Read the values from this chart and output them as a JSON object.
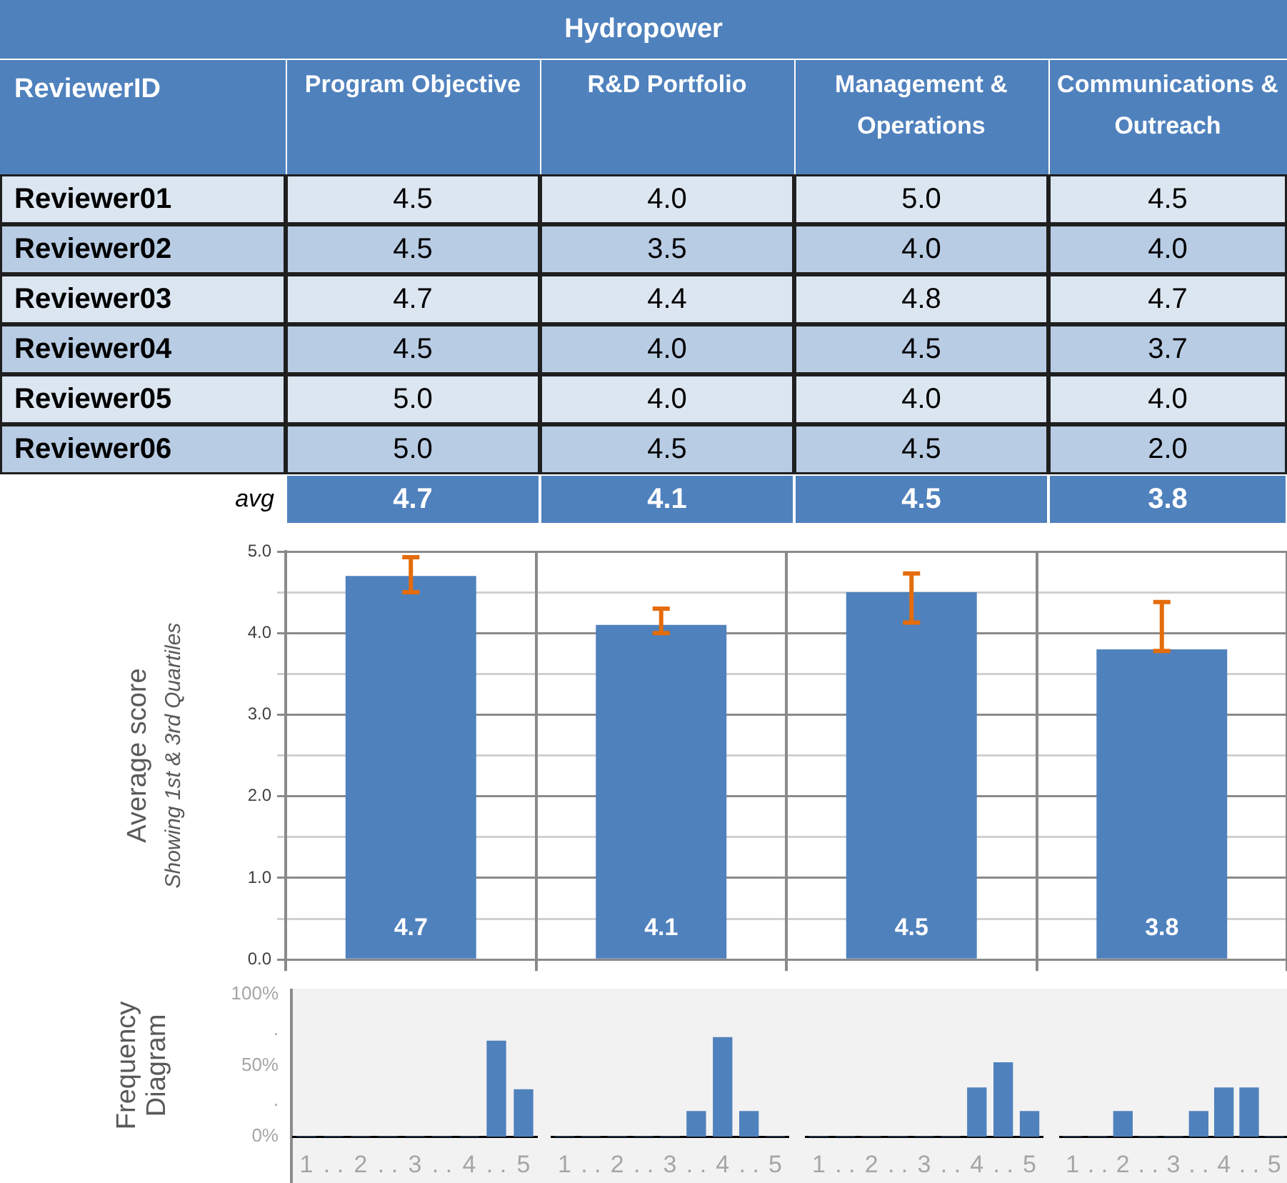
{
  "chart_data": [
    {
      "type": "heatmap",
      "title": "Hydropower",
      "ylabel": "ReviewerID",
      "categories": [
        "Program Objective",
        "R&D Portfolio",
        "Management & Operations",
        "Communications & Outreach"
      ],
      "y_categories": [
        "Reviewer01",
        "Reviewer02",
        "Reviewer03",
        "Reviewer04",
        "Reviewer05",
        "Reviewer06",
        "avg"
      ],
      "cells": [
        [
          4.5,
          4.0,
          5.0,
          4.5
        ],
        [
          4.5,
          3.5,
          4.0,
          4.0
        ],
        [
          4.7,
          4.4,
          4.8,
          4.7
        ],
        [
          4.5,
          4.0,
          4.5,
          3.7
        ],
        [
          5.0,
          4.0,
          4.0,
          4.0
        ],
        [
          5.0,
          4.5,
          4.5,
          2.0
        ],
        [
          4.7,
          4.1,
          4.5,
          3.8
        ]
      ],
      "cell_labels": [
        [
          "4.5",
          "4.0",
          "5.0",
          "4.5"
        ],
        [
          "4.5",
          "3.5",
          "4.0",
          "4.0"
        ],
        [
          "4.7",
          "4.4",
          "4.8",
          "4.7"
        ],
        [
          "4.5",
          "4.0",
          "4.5",
          "3.7"
        ],
        [
          "5.0",
          "4.0",
          "4.0",
          "4.0"
        ],
        [
          "5.0",
          "4.5",
          "4.5",
          "2.0"
        ],
        [
          "4.7",
          "4.1",
          "4.5",
          "3.8"
        ]
      ],
      "data_labels": true
    },
    {
      "type": "bar",
      "ylabel": "Average score",
      "annotations": [
        "Showing 1st & 3rd Quartiles"
      ],
      "categories": [
        null,
        null,
        null,
        null
      ],
      "values": [
        4.7,
        4.1,
        4.5,
        3.8
      ],
      "color": "#4f81bd",
      "errors": [
        [
          4.5,
          4.93
        ],
        [
          4.0,
          4.3
        ],
        [
          4.13,
          4.73
        ],
        [
          3.78,
          4.38
        ]
      ],
      "data_labels": true,
      "grid": true,
      "ylim": [
        0,
        5
      ],
      "yticks": [
        {
          "value": 0,
          "label": "0.0"
        },
        {
          "value": 0.5,
          "label": null
        },
        {
          "value": 1,
          "label": "1.0"
        },
        {
          "value": 1.5,
          "label": null
        },
        {
          "value": 2,
          "label": "2.0"
        },
        {
          "value": 2.5,
          "label": null
        },
        {
          "value": 3,
          "label": "3.0"
        },
        {
          "value": 3.5,
          "label": null
        },
        {
          "value": 4,
          "label": "4.0"
        },
        {
          "value": 4.5,
          "label": null
        },
        {
          "value": 5,
          "label": "5.0"
        }
      ]
    },
    {
      "type": "bar",
      "ylabel": "Frequency Diagram",
      "x": [
        1,
        1.5,
        2,
        2.5,
        3,
        3.5,
        4,
        4.5,
        5
      ],
      "values": [
        0,
        0,
        0,
        0,
        0,
        0,
        0,
        67,
        33
      ],
      "color": "#4f81bd",
      "xlim": [
        0.75,
        5.25
      ],
      "xticks": [
        1,
        {
          "value": 1.5,
          "label": ". ."
        },
        2,
        {
          "value": 2.5,
          "label": ". ."
        },
        3,
        {
          "value": 3.5,
          "label": ". ."
        },
        4,
        {
          "value": 4.5,
          "label": ". ."
        },
        5
      ],
      "ylim": [
        0,
        100
      ],
      "yticks": [
        {
          "value": 0,
          "label": "0%"
        },
        {
          "value": 25,
          "label": "."
        },
        {
          "value": 50,
          "label": "50%"
        },
        {
          "value": 75,
          "label": "."
        },
        {
          "value": 100,
          "label": "100%"
        }
      ]
    },
    {
      "type": "bar",
      "x": [
        1,
        1.5,
        2,
        2.5,
        3,
        3.5,
        4,
        4.5,
        5
      ],
      "values": [
        0,
        0,
        0,
        0,
        0,
        17,
        67,
        17,
        0
      ],
      "color": "#4f81bd",
      "tick_labels": "x",
      "xlim": [
        0.75,
        5.25
      ],
      "xticks": [
        1,
        {
          "value": 1.5,
          "label": ". ."
        },
        2,
        {
          "value": 2.5,
          "label": ". ."
        },
        3,
        {
          "value": 3.5,
          "label": ". ."
        },
        4,
        {
          "value": 4.5,
          "label": ". ."
        },
        5
      ],
      "ylim": [
        0,
        100
      ]
    },
    {
      "type": "bar",
      "x": [
        1,
        1.5,
        2,
        2.5,
        3,
        3.5,
        4,
        4.5,
        5
      ],
      "values": [
        0,
        0,
        0,
        0,
        0,
        0,
        33,
        50,
        17
      ],
      "color": "#4f81bd",
      "tick_labels": "x",
      "xlim": [
        0.75,
        5.25
      ],
      "xticks": [
        1,
        {
          "value": 1.5,
          "label": ". ."
        },
        2,
        {
          "value": 2.5,
          "label": ". ."
        },
        3,
        {
          "value": 3.5,
          "label": ". ."
        },
        4,
        {
          "value": 4.5,
          "label": ". ."
        },
        5
      ],
      "ylim": [
        0,
        100
      ]
    },
    {
      "type": "bar",
      "x": [
        1,
        1.5,
        2,
        2.5,
        3,
        3.5,
        4,
        4.5,
        5
      ],
      "values": [
        0,
        0,
        17,
        0,
        0,
        17,
        33,
        33,
        0
      ],
      "color": "#4f81bd",
      "tick_labels": "x",
      "xlim": [
        0.75,
        5.25
      ],
      "xticks": [
        1,
        {
          "value": 1.5,
          "label": ". ."
        },
        2,
        {
          "value": 2.5,
          "label": ". ."
        },
        3,
        {
          "value": 3.5,
          "label": ". ."
        },
        4,
        {
          "value": 4.5,
          "label": ". ."
        },
        5
      ],
      "ylim": [
        0,
        100
      ]
    }
  ]
}
